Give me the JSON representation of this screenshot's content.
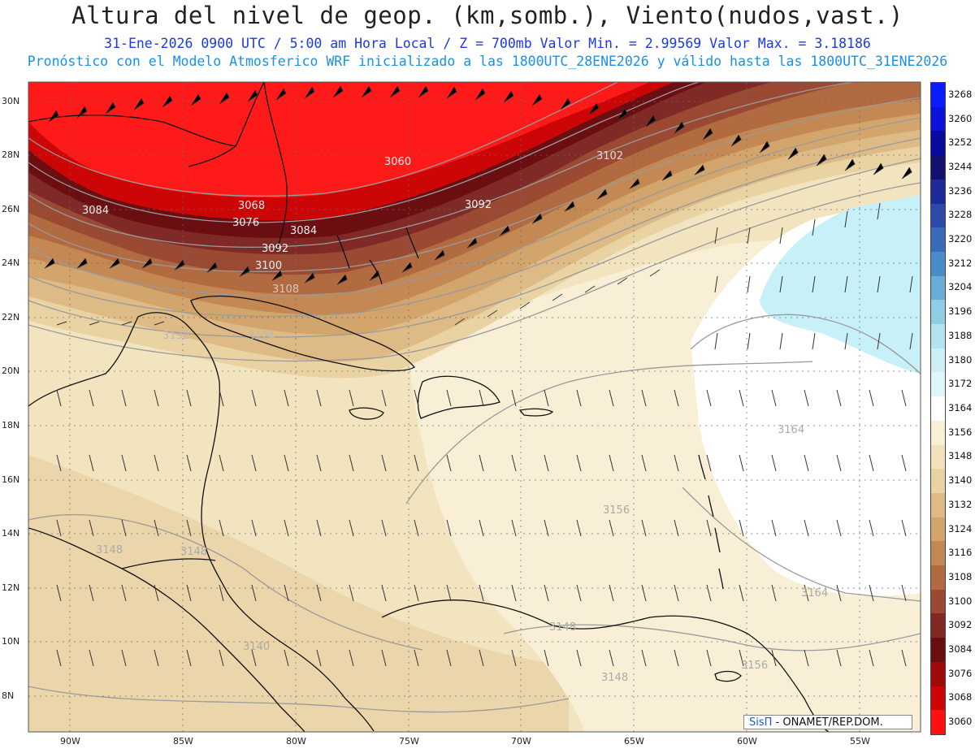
{
  "header": {
    "title": "Altura del nivel de geop. (km,somb.), Viento(nudos,vast.)",
    "line1": "31-Ene-2026  0900 UTC / 5:00 am Hora Local / Z = 700mb    Valor Min. = 2.99569  Valor Max. = 3.18186",
    "line2": "Pronóstico con el Modelo Atmosferico WRF inicializado a las 1800UTC_28ENE2026 y válido hasta las  1800UTC_31ENE2026"
  },
  "colorbar": {
    "labels": [
      "3268",
      "3260",
      "3252",
      "3244",
      "3236",
      "3228",
      "3220",
      "3212",
      "3204",
      "3196",
      "3188",
      "3180",
      "3172",
      "3164",
      "3156",
      "3148",
      "3140",
      "3132",
      "3124",
      "3116",
      "3108",
      "3100",
      "3092",
      "3084",
      "3076",
      "3068",
      "3060"
    ],
    "colors": [
      "#0a1cff",
      "#0c12d9",
      "#0a0a9e",
      "#14106e",
      "#1e2a9a",
      "#2e4aa8",
      "#3a6ab8",
      "#4a8cc8",
      "#6aaed8",
      "#8fcde4",
      "#b3e3ef",
      "#cfeef6",
      "#dff6fb",
      "#ffffff",
      "#f8efd4",
      "#f2e2bc",
      "#ead3a3",
      "#deba86",
      "#d2a56c",
      "#c38853",
      "#b26a40",
      "#9a4a32",
      "#7f2a26",
      "#6a0e12",
      "#9e0a0a",
      "#cc0606",
      "#ff1010"
    ]
  },
  "axes": {
    "lat_labels": [
      "30N",
      "28N",
      "26N",
      "24N",
      "22N",
      "20N",
      "18N",
      "16N",
      "14N",
      "12N",
      "10N",
      "8N"
    ],
    "lon_labels": [
      "90W",
      "85W",
      "80W",
      "75W",
      "70W",
      "65W",
      "60W",
      "55W"
    ]
  },
  "contour_labels": [
    "3060",
    "3068",
    "3076",
    "3084",
    "3084",
    "3092",
    "3092",
    "3100",
    "3102",
    "3108",
    "3124",
    "3132",
    "3148",
    "3148",
    "3148",
    "3148",
    "3140",
    "3156",
    "3156",
    "3164",
    "3164"
  ],
  "credit": {
    "brand": "SisΠ",
    "text": " - ONAMET/REP.DOM."
  }
}
